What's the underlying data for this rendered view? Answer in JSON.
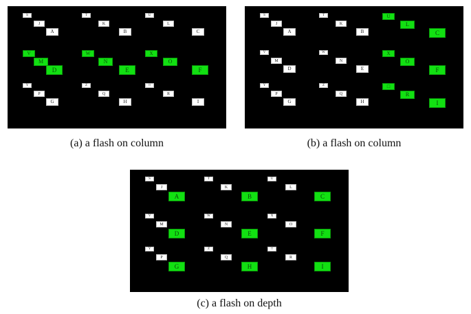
{
  "colors": {
    "background": "#000000",
    "lit": "#12e012",
    "unlit": "#ffffff"
  },
  "panels": [
    {
      "caption": "(a) a flash on column",
      "cells": [
        {
          "label": "S",
          "lit": false
        },
        {
          "label": "J",
          "lit": false
        },
        {
          "label": "A",
          "lit": false
        },
        {
          "label": "T",
          "lit": false
        },
        {
          "label": "K",
          "lit": false
        },
        {
          "label": "B",
          "lit": false
        },
        {
          "label": "U",
          "lit": false
        },
        {
          "label": "L",
          "lit": false
        },
        {
          "label": "C",
          "lit": false
        },
        {
          "label": "V",
          "lit": true
        },
        {
          "label": "M",
          "lit": true
        },
        {
          "label": "D",
          "lit": true
        },
        {
          "label": "W",
          "lit": true
        },
        {
          "label": "N",
          "lit": true
        },
        {
          "label": "E",
          "lit": true
        },
        {
          "label": "X",
          "lit": true
        },
        {
          "label": "O",
          "lit": true
        },
        {
          "label": "F",
          "lit": true
        },
        {
          "label": "Y",
          "lit": false
        },
        {
          "label": "P",
          "lit": false
        },
        {
          "label": "G",
          "lit": false
        },
        {
          "label": "Z",
          "lit": false
        },
        {
          "label": "Q",
          "lit": false
        },
        {
          "label": "H",
          "lit": false
        },
        {
          "label": "□",
          "lit": false
        },
        {
          "label": "R",
          "lit": false
        },
        {
          "label": "I",
          "lit": false
        }
      ]
    },
    {
      "caption": "(b) a flash on column",
      "cells": [
        {
          "label": "S",
          "lit": false
        },
        {
          "label": "J",
          "lit": false
        },
        {
          "label": "A",
          "lit": false
        },
        {
          "label": "T",
          "lit": false
        },
        {
          "label": "K",
          "lit": false
        },
        {
          "label": "B",
          "lit": false
        },
        {
          "label": "U",
          "lit": true
        },
        {
          "label": "L",
          "lit": true
        },
        {
          "label": "C",
          "lit": true
        },
        {
          "label": "V",
          "lit": false
        },
        {
          "label": "M",
          "lit": false
        },
        {
          "label": "D",
          "lit": false
        },
        {
          "label": "W",
          "lit": false
        },
        {
          "label": "N",
          "lit": false
        },
        {
          "label": "E",
          "lit": false
        },
        {
          "label": "X",
          "lit": true
        },
        {
          "label": "O",
          "lit": true
        },
        {
          "label": "F",
          "lit": true
        },
        {
          "label": "Y",
          "lit": false
        },
        {
          "label": "P",
          "lit": false
        },
        {
          "label": "G",
          "lit": false
        },
        {
          "label": "Z",
          "lit": false
        },
        {
          "label": "Q",
          "lit": false
        },
        {
          "label": "H",
          "lit": false
        },
        {
          "label": "□",
          "lit": true
        },
        {
          "label": "R",
          "lit": true
        },
        {
          "label": "I",
          "lit": true
        }
      ]
    },
    {
      "caption": "(c) a flash on depth",
      "cells": [
        {
          "label": "S",
          "lit": false
        },
        {
          "label": "J",
          "lit": false
        },
        {
          "label": "A",
          "lit": true
        },
        {
          "label": "T",
          "lit": false
        },
        {
          "label": "K",
          "lit": false
        },
        {
          "label": "B",
          "lit": true
        },
        {
          "label": "U",
          "lit": false
        },
        {
          "label": "L",
          "lit": false
        },
        {
          "label": "C",
          "lit": true
        },
        {
          "label": "V",
          "lit": false
        },
        {
          "label": "M",
          "lit": false
        },
        {
          "label": "D",
          "lit": true
        },
        {
          "label": "W",
          "lit": false
        },
        {
          "label": "N",
          "lit": false
        },
        {
          "label": "E",
          "lit": true
        },
        {
          "label": "X",
          "lit": false
        },
        {
          "label": "O",
          "lit": false
        },
        {
          "label": "F",
          "lit": true
        },
        {
          "label": "Y",
          "lit": false
        },
        {
          "label": "P",
          "lit": false
        },
        {
          "label": "G",
          "lit": true
        },
        {
          "label": "Z",
          "lit": false
        },
        {
          "label": "Q",
          "lit": false
        },
        {
          "label": "H",
          "lit": true
        },
        {
          "label": "□",
          "lit": false
        },
        {
          "label": "R",
          "lit": false
        },
        {
          "label": "I",
          "lit": true
        }
      ]
    }
  ]
}
